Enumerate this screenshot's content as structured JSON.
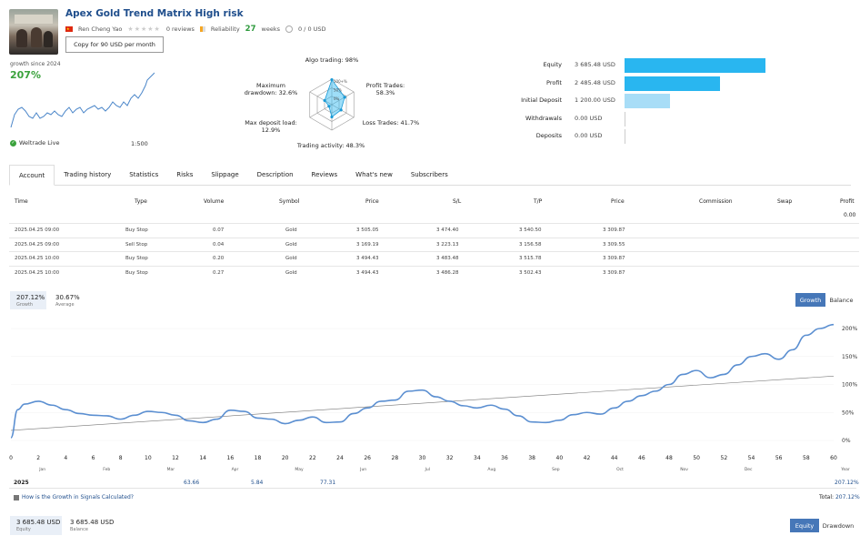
{
  "header": {
    "title": "Apex Gold Trend Matrix High risk",
    "author": "Ren Cheng Yao",
    "reviews": "0 reviews",
    "reliability": "Reliability",
    "weeks_num": "27",
    "weeks_label": "weeks",
    "subscribers": "0 / 0 USD",
    "copy_button": "Copy for 90 USD per month"
  },
  "summary": {
    "growth_since": "growth since 2024",
    "growth_value": "207%",
    "broker": "Weltrade Live",
    "leverage": "1:500"
  },
  "radar": {
    "algo": "Algo trading: 98%",
    "profit_trades": "Profit Trades:\n58.3%",
    "loss_trades": "Loss Trades: 41.7%",
    "activity": "Trading activity: 48.3%",
    "max_deposit": "Max deposit load:\n12.9%",
    "max_drawdown": "Maximum\ndrawdown: 32.6%",
    "ring_labels": [
      "100+%",
      "50%",
      "0%"
    ],
    "values": [
      0.98,
      0.583,
      0.417,
      0.483,
      0.129,
      0.326
    ]
  },
  "balance_bars": [
    {
      "label": "Equity",
      "value": "3 685.48 USD",
      "amount": 3685.48,
      "color": "#29b6f0"
    },
    {
      "label": "Profit",
      "value": "2 485.48 USD",
      "amount": 2485.48,
      "color": "#29b6f0"
    },
    {
      "label": "Initial Deposit",
      "value": "1 200.00 USD",
      "amount": 1200.0,
      "color": "#a8ddf7"
    },
    {
      "label": "Withdrawals",
      "value": "0.00 USD",
      "amount": 0,
      "color": "#29b6f0"
    },
    {
      "label": "Deposits",
      "value": "0.00 USD",
      "amount": 0,
      "color": "#29b6f0"
    }
  ],
  "tabs": [
    "Account",
    "Trading history",
    "Statistics",
    "Risks",
    "Slippage",
    "Description",
    "Reviews",
    "What's new",
    "Subscribers"
  ],
  "table": {
    "headers": [
      "Time",
      "Type",
      "Volume",
      "Symbol",
      "Price",
      "S/L",
      "T/P",
      "Price",
      "Commission",
      "Swap",
      "Profit"
    ],
    "profit_total": "0.00",
    "rows": [
      [
        "2025.04.25 09:00",
        "Buy Stop",
        "0.07",
        "Gold",
        "3 505.05",
        "3 474.40",
        "3 540.50",
        "3 309.87"
      ],
      [
        "2025.04.25 09:00",
        "Sell Stop",
        "0.04",
        "Gold",
        "3 169.19",
        "3 223.13",
        "3 156.58",
        "3 309.55"
      ],
      [
        "2025.04.25 10:00",
        "Buy Stop",
        "0.20",
        "Gold",
        "3 494.43",
        "3 483.48",
        "3 515.78",
        "3 309.87"
      ],
      [
        "2025.04.25 10:00",
        "Buy Stop",
        "0.27",
        "Gold",
        "3 494.43",
        "3 486.28",
        "3 502.43",
        "3 309.87"
      ]
    ]
  },
  "growth_chart": {
    "legend_growth_value": "207.12%",
    "legend_growth_label": "Growth",
    "legend_avg_value": "30.67%",
    "legend_avg_label": "Average",
    "btn_growth": "Growth",
    "btn_balance": "Balance",
    "year_row_label": "2025",
    "year_row_values": [
      "63.66",
      "5.84",
      "77.31"
    ],
    "year_label": "Year",
    "year_total": "207.12%",
    "note": "How is the Growth in Signals Calculated?",
    "total_label": "Total:",
    "total_value": "207.12%"
  },
  "chart_data": {
    "type": "line",
    "x_ticks": [
      "0",
      "2",
      "4",
      "6",
      "8",
      "10",
      "12",
      "14",
      "16",
      "18",
      "20",
      "22",
      "24",
      "26",
      "28",
      "30",
      "32",
      "34",
      "36",
      "38",
      "40",
      "42",
      "44",
      "46",
      "48",
      "50",
      "52",
      "54",
      "56",
      "58",
      "60"
    ],
    "month_labels": [
      "Jan",
      "Feb",
      "Mar",
      "Apr",
      "May",
      "Jun",
      "Jul",
      "Aug",
      "Sep",
      "Oct",
      "Nov",
      "Dec"
    ],
    "y_ticks": [
      "0%",
      "50%",
      "100%",
      "150%",
      "200%"
    ],
    "ylim": [
      0,
      200
    ],
    "xlim": [
      0,
      60
    ],
    "series": [
      {
        "x": [
          0,
          0.5,
          1,
          2,
          3,
          4,
          5,
          6,
          7,
          8,
          9,
          10,
          11,
          12,
          13,
          14,
          15,
          16,
          17,
          18,
          19,
          20,
          21,
          22,
          23,
          24,
          25,
          26,
          27,
          28,
          29,
          30,
          31,
          32,
          33,
          34,
          35,
          36,
          37,
          38,
          39,
          40,
          41,
          42,
          43,
          44,
          45,
          46,
          47,
          48,
          49,
          50,
          51,
          52,
          53,
          54,
          55,
          56,
          57,
          58,
          59,
          60
        ],
        "y": [
          5,
          55,
          65,
          70,
          63,
          55,
          48,
          45,
          44,
          38,
          45,
          52,
          50,
          45,
          35,
          32,
          38,
          54,
          52,
          40,
          38,
          30,
          36,
          42,
          32,
          33,
          48,
          58,
          70,
          72,
          88,
          90,
          78,
          70,
          62,
          58,
          63,
          56,
          44,
          33,
          32,
          36,
          46,
          50,
          47,
          58,
          70,
          80,
          88,
          100,
          118,
          125,
          112,
          118,
          135,
          150,
          155,
          145,
          162,
          188,
          200,
          207
        ]
      },
      {
        "x": [
          0,
          60
        ],
        "y": [
          18,
          115
        ]
      }
    ]
  },
  "equity_footer": {
    "equity_value": "3 685.48 USD",
    "equity_label": "Equity",
    "balance_value": "3 685.48 USD",
    "balance_label": "Balance",
    "btn_equity": "Equity",
    "btn_drawdown": "Drawdown"
  }
}
